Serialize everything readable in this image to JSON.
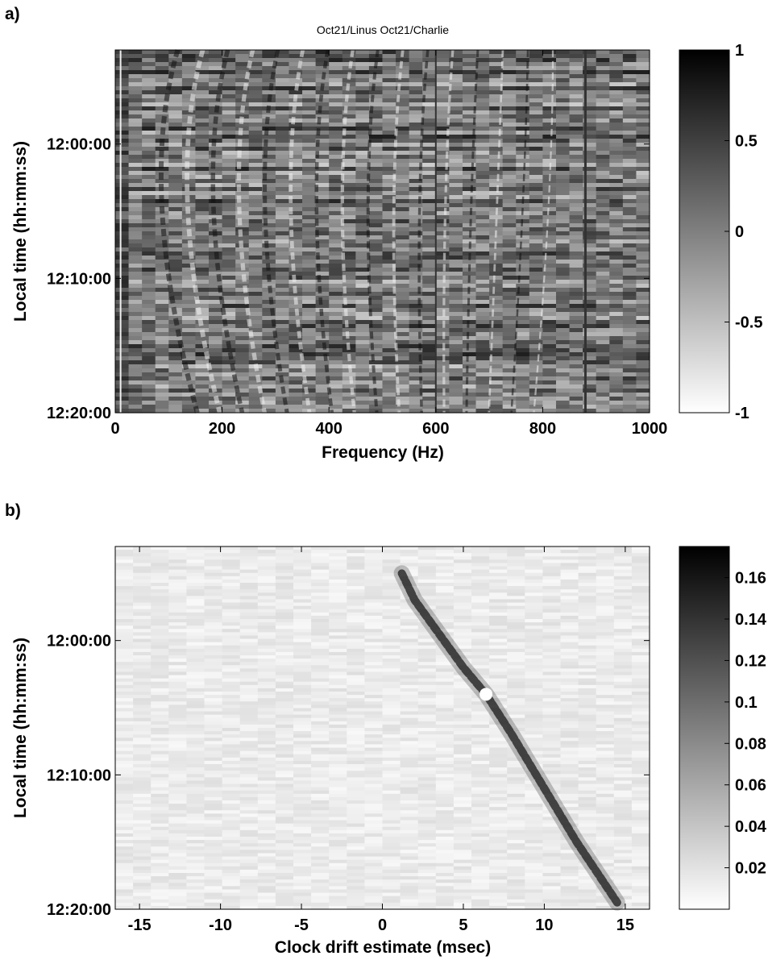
{
  "figure": {
    "panel_a_label": "a)",
    "panel_b_label": "b)"
  },
  "chart_data": [
    {
      "type": "heatmap",
      "panel": "a)",
      "title": "Oct21/Linus  Oct21/Charlie",
      "xlabel": "Frequency (Hz)",
      "ylabel": "Local time (hh:mm:ss)",
      "xlim": [
        0,
        1000
      ],
      "x_ticks": [
        0,
        200,
        400,
        600,
        800,
        1000
      ],
      "y_ticks": [
        "12:00:00",
        "12:10:00",
        "12:20:00"
      ],
      "y_range_minutes": [
        -7,
        20
      ],
      "y_ticks_minutes": [
        0,
        10,
        20
      ],
      "y_reversed": true,
      "colormap": "gray (white = low, black = high)",
      "colorbar": {
        "min": -1,
        "max": 1,
        "ticks": [
          1,
          0.5,
          0,
          -0.5,
          -1
        ]
      },
      "features": "curved interference fringes descending toward higher frequency with time; vertical lines near 10 Hz, 600 Hz and 880 Hz",
      "grid": false
    },
    {
      "type": "heatmap",
      "panel": "b)",
      "xlabel": "Clock drift estimate (msec)",
      "ylabel": "Local time (hh:mm:ss)",
      "xlim": [
        -16.5,
        16.5
      ],
      "x_ticks": [
        -15,
        -10,
        -5,
        0,
        5,
        10,
        15
      ],
      "y_ticks": [
        "12:00:00",
        "12:10:00",
        "12:20:00"
      ],
      "y_range_minutes": [
        -7,
        20
      ],
      "y_ticks_minutes": [
        0,
        10,
        20
      ],
      "y_reversed": true,
      "colormap": "gray (white = low, black = high)",
      "colorbar": {
        "min": 0,
        "max": 0.175,
        "ticks": [
          0.16,
          0.14,
          0.12,
          0.1,
          0.08,
          0.06,
          0.04,
          0.02
        ]
      },
      "ridge": {
        "drift_msec": [
          1.2,
          2.0,
          3.5,
          5.0,
          6.4,
          8.0,
          10.0,
          12.0,
          14.5
        ],
        "time_minutes": [
          -5.0,
          -3.0,
          -0.5,
          2.0,
          4.0,
          7.0,
          11.0,
          15.0,
          19.5
        ]
      },
      "marker": {
        "drift_msec": 6.4,
        "time_minutes": 4.0,
        "color": "#ffffff"
      },
      "grid": false
    }
  ]
}
